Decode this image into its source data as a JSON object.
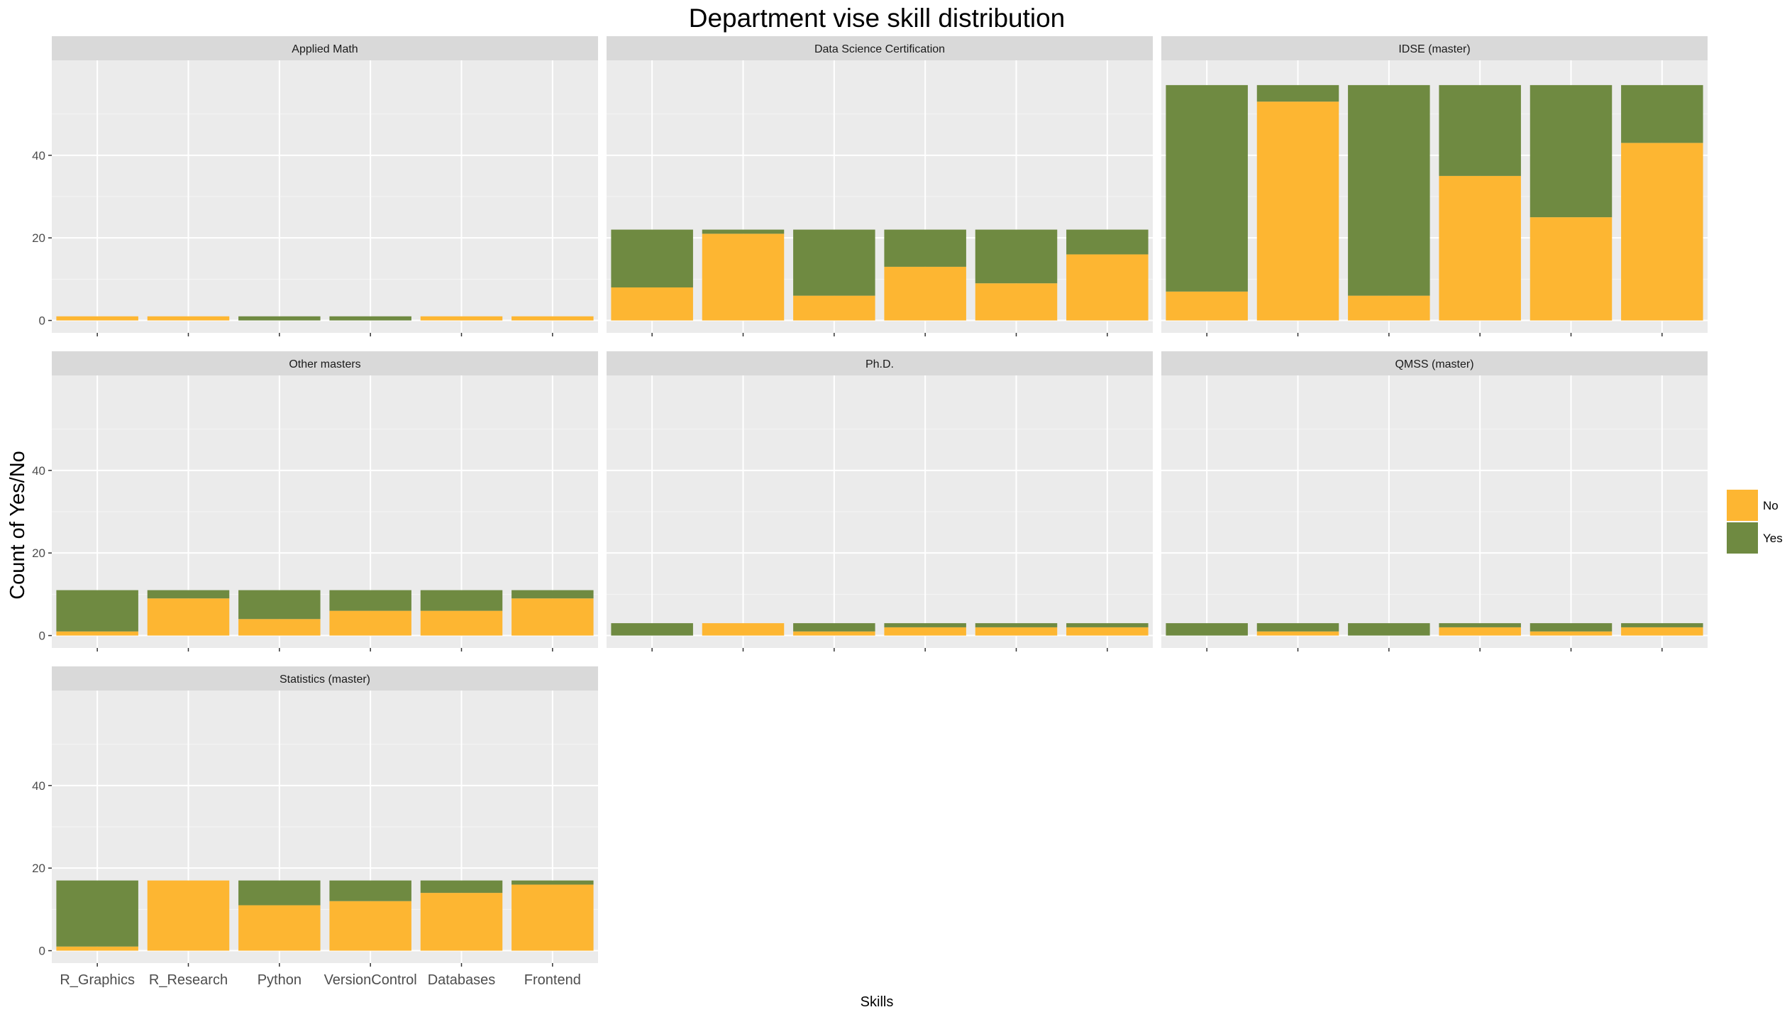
{
  "chart_data": {
    "type": "bar",
    "stacked": true,
    "title": "Department vise skill distribution",
    "xlabel": "Skills",
    "ylabel": "Count of Yes/No",
    "categories": [
      "R_Graphics",
      "R_Research",
      "Python",
      "VersionControl",
      "Databases",
      "Frontend"
    ],
    "ylim": [
      0,
      60
    ],
    "yticks": [
      0,
      20,
      40
    ],
    "grid": true,
    "legend_position": "right",
    "legend": [
      {
        "label": "No",
        "color": "#fdb632"
      },
      {
        "label": "Yes",
        "color": "#6f8a41"
      }
    ],
    "facets": [
      {
        "name": "Applied Math",
        "no": [
          1,
          1,
          0,
          0,
          1,
          1
        ],
        "yes": [
          0,
          0,
          1,
          1,
          0,
          0
        ]
      },
      {
        "name": "Data Science Certification",
        "no": [
          8,
          21,
          6,
          13,
          9,
          16
        ],
        "yes": [
          14,
          1,
          16,
          9,
          13,
          6
        ]
      },
      {
        "name": "IDSE (master)",
        "no": [
          7,
          53,
          6,
          35,
          25,
          43
        ],
        "yes": [
          50,
          4,
          51,
          22,
          32,
          14
        ]
      },
      {
        "name": "Other masters",
        "no": [
          1,
          9,
          4,
          6,
          6,
          9
        ],
        "yes": [
          10,
          2,
          7,
          5,
          5,
          2
        ]
      },
      {
        "name": "Ph.D.",
        "no": [
          0,
          3,
          1,
          2,
          2,
          2
        ],
        "yes": [
          3,
          0,
          2,
          1,
          1,
          1
        ]
      },
      {
        "name": "QMSS (master)",
        "no": [
          0,
          1,
          0,
          2,
          1,
          2
        ],
        "yes": [
          3,
          2,
          3,
          1,
          2,
          1
        ]
      },
      {
        "name": "Statistics (master)",
        "no": [
          1,
          17,
          11,
          12,
          14,
          16
        ],
        "yes": [
          16,
          0,
          6,
          5,
          3,
          1
        ]
      }
    ]
  }
}
